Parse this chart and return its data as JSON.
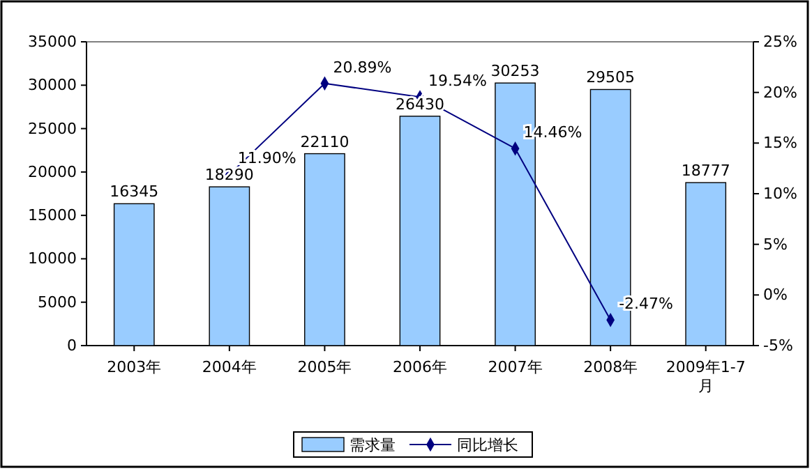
{
  "chart_data": {
    "type": "bar",
    "categories": [
      "2003年",
      "2004年",
      "2005年",
      "2006年",
      "2007年",
      "2008年",
      "2009年1-7月"
    ],
    "series": [
      {
        "name": "需求量",
        "color": "#99ccff",
        "values": [
          16345,
          18290,
          22110,
          26430,
          30253,
          29505,
          18777
        ],
        "value_labels": [
          "16345",
          "18290",
          "22110",
          "26430",
          "30253",
          "29505",
          "18777"
        ]
      },
      {
        "name": "同比增长",
        "type": "line",
        "axis": "y2",
        "color": "#000080",
        "values": [
          null,
          11.9,
          20.89,
          19.54,
          14.46,
          -2.47,
          null
        ],
        "value_labels": [
          null,
          "11.90%",
          "20.89%",
          "19.54%",
          "14.46%",
          "-2.47%",
          null
        ]
      }
    ],
    "ylim": [
      0,
      35000
    ],
    "yticks": [
      0,
      5000,
      10000,
      15000,
      20000,
      25000,
      30000,
      35000
    ],
    "y2lim": [
      -5,
      25
    ],
    "y2ticks": [
      {
        "value": -5,
        "label": "-5%"
      },
      {
        "value": 0,
        "label": "0%"
      },
      {
        "value": 5,
        "label": "5%"
      },
      {
        "value": 10,
        "label": "10%"
      },
      {
        "value": 15,
        "label": "15%"
      },
      {
        "value": 20,
        "label": "20%"
      },
      {
        "value": 25,
        "label": "25%"
      }
    ],
    "marker": "diamond",
    "line_style": "solid",
    "legend": "bottom",
    "grid": false
  }
}
